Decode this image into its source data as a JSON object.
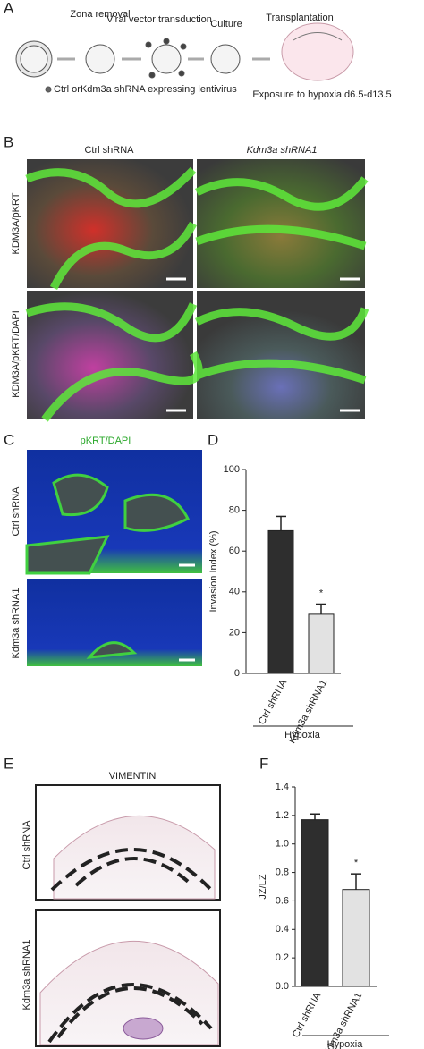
{
  "panel_letters": [
    "A",
    "B",
    "C",
    "D",
    "E",
    "F"
  ],
  "panel_a": {
    "steps": [
      "Zona removal",
      "Viral vector transduction",
      "Culture",
      "Transplantation"
    ],
    "legend": "Ctrl orKdm3a shRNA expressing lentivirus",
    "exposure": "Exposure to hypoxia d6.5-d13.5"
  },
  "panel_b": {
    "columns": [
      "Ctrl shRNA",
      "Kdm3a shRNA1"
    ],
    "rows": [
      "KDM3A/pKRT",
      "KDM3A/pKRT/DAPI"
    ]
  },
  "panel_c": {
    "title": "pKRT/DAPI",
    "rows": [
      "Ctrl shRNA",
      "Kdm3a shRNA1"
    ]
  },
  "panel_e": {
    "title": "VIMENTIN",
    "rows": [
      "Ctrl shRNA",
      "Kdm3a shRNA1"
    ]
  },
  "chart_data": [
    {
      "type": "bar",
      "y_label": "Invasion Index (%)",
      "categories": [
        "Ctrl shRNA",
        "Kdm3a shRNA1"
      ],
      "values": [
        70,
        29
      ],
      "errors": [
        7,
        5
      ],
      "colors": [
        "#2e2e2e",
        "#e2e2e2"
      ],
      "ylim": [
        0,
        100
      ],
      "yticks": [
        0,
        20,
        40,
        60,
        80,
        100
      ],
      "group_label": "Hypoxia",
      "annotation": "*"
    },
    {
      "type": "bar",
      "y_label": "JZ/LZ",
      "categories": [
        "Ctrl shRNA",
        "Kdm3a shRNA1"
      ],
      "values": [
        1.17,
        0.68
      ],
      "errors": [
        0.04,
        0.11
      ],
      "colors": [
        "#2e2e2e",
        "#e2e2e2"
      ],
      "ylim": [
        0,
        1.4
      ],
      "yticks": [
        {
          "value": 0,
          "label": "0.0"
        },
        {
          "value": 0.2,
          "label": "0.2"
        },
        {
          "value": 0.4,
          "label": "0.4"
        },
        {
          "value": 0.6,
          "label": "0.6"
        },
        {
          "value": 0.8,
          "label": "0.8"
        },
        {
          "value": 1,
          "label": "1.0"
        },
        {
          "value": 1.2,
          "label": "1.2"
        },
        {
          "value": 1.4,
          "label": "1.4"
        }
      ],
      "group_label": "Hypoxia",
      "annotation": "*"
    }
  ]
}
